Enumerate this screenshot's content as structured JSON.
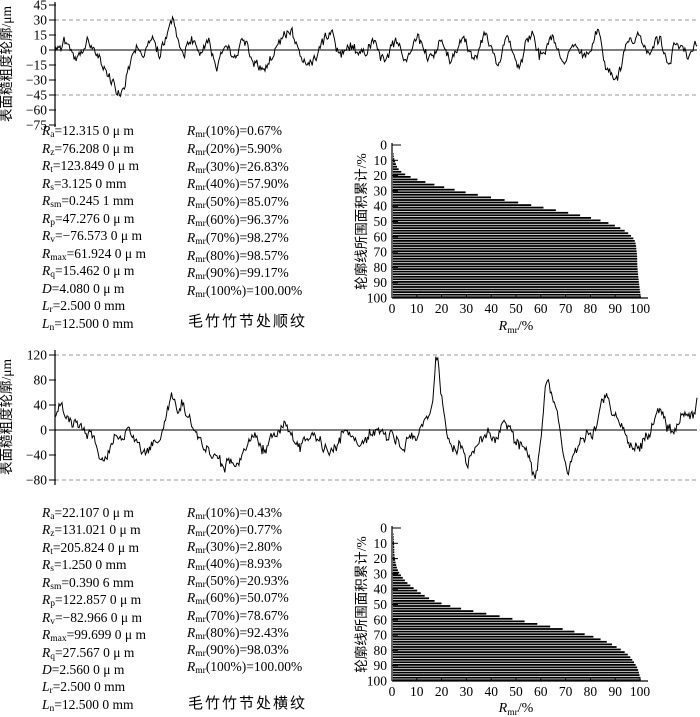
{
  "figure": {
    "panels": [
      {
        "caption": "毛竹竹节处顺纹",
        "profile_ylabel": "表面糙粗度轮廓/μm",
        "params": [
          {
            "base": "R",
            "sub": "a",
            "rest": "=12.315 0 μ m"
          },
          {
            "base": "R",
            "sub": "z",
            "rest": "=76.208 0 μ m"
          },
          {
            "base": "R",
            "sub": "t",
            "rest": "=123.849 0 μ m"
          },
          {
            "base": "R",
            "sub": "s",
            "rest": "=3.125 0 mm"
          },
          {
            "base": "R",
            "sub": "sm",
            "rest": "=0.245 1 mm"
          },
          {
            "base": "R",
            "sub": "p",
            "rest": "=47.276 0 μ m"
          },
          {
            "base": "R",
            "sub": "v",
            "rest": "=−76.573 0 μ m"
          },
          {
            "base": "R",
            "sub": "max",
            "rest": "=61.924 0 μ m"
          },
          {
            "base": "R",
            "sub": "q",
            "rest": "=15.462 0 μ m"
          },
          {
            "base": "D",
            "sub": "",
            "rest": "=4.080 0 μ m"
          },
          {
            "base": "L",
            "sub": "r",
            "rest": "=2.500 0 mm"
          },
          {
            "base": "L",
            "sub": "n",
            "rest": "=12.500 0 mm"
          }
        ],
        "rmr": [
          {
            "base": "R",
            "sub": "mr",
            "rest": "(10%)=0.67%"
          },
          {
            "base": "R",
            "sub": "mr",
            "rest": "(20%)=5.90%"
          },
          {
            "base": "R",
            "sub": "mr",
            "rest": "(30%)=26.83%"
          },
          {
            "base": "R",
            "sub": "mr",
            "rest": "(40%)=57.90%"
          },
          {
            "base": "R",
            "sub": "mr",
            "rest": "(50%)=85.07%"
          },
          {
            "base": "R",
            "sub": "mr",
            "rest": "(60%)=96.37%"
          },
          {
            "base": "R",
            "sub": "mr",
            "rest": "(70%)=98.27%"
          },
          {
            "base": "R",
            "sub": "mr",
            "rest": "(80%)=98.57%"
          },
          {
            "base": "R",
            "sub": "mr",
            "rest": "(90%)=99.17%"
          },
          {
            "base": "R",
            "sub": "mr",
            "rest": "(100%)=100.00%"
          }
        ],
        "abbott_ylabel": "轮廓线所围面积累计/%",
        "abbott_xlabel": {
          "base": "R",
          "sub": "mr",
          "rest": "/%"
        }
      },
      {
        "caption": "毛竹竹节处横纹",
        "profile_ylabel": "表面糙粗度轮廓/μm",
        "params": [
          {
            "base": "R",
            "sub": "a",
            "rest": "=22.107 0 μ m"
          },
          {
            "base": "R",
            "sub": "z",
            "rest": "=131.021 0 μ m"
          },
          {
            "base": "R",
            "sub": "t",
            "rest": "=205.824 0 μ m"
          },
          {
            "base": "R",
            "sub": "s",
            "rest": "=1.250 0 mm"
          },
          {
            "base": "R",
            "sub": "sm",
            "rest": "=0.390 6 mm"
          },
          {
            "base": "R",
            "sub": "p",
            "rest": "=122.857 0 μ m"
          },
          {
            "base": "R",
            "sub": "v",
            "rest": "=−82.966 0 μ m"
          },
          {
            "base": "R",
            "sub": "max",
            "rest": "=99.699 0 μ m"
          },
          {
            "base": "R",
            "sub": "q",
            "rest": "=27.567 0 μ m"
          },
          {
            "base": "D",
            "sub": "",
            "rest": "=2.560 0 μ m"
          },
          {
            "base": "L",
            "sub": "r",
            "rest": "=2.500 0 mm"
          },
          {
            "base": "L",
            "sub": "n",
            "rest": "=12.500 0 mm"
          }
        ],
        "rmr": [
          {
            "base": "R",
            "sub": "mr",
            "rest": "(10%)=0.43%"
          },
          {
            "base": "R",
            "sub": "mr",
            "rest": "(20%)=0.77%"
          },
          {
            "base": "R",
            "sub": "mr",
            "rest": "(30%)=2.80%"
          },
          {
            "base": "R",
            "sub": "mr",
            "rest": "(40%)=8.93%"
          },
          {
            "base": "R",
            "sub": "mr",
            "rest": "(50%)=20.93%"
          },
          {
            "base": "R",
            "sub": "mr",
            "rest": "(60%)=50.07%"
          },
          {
            "base": "R",
            "sub": "mr",
            "rest": "(70%)=78.67%"
          },
          {
            "base": "R",
            "sub": "mr",
            "rest": "(80%)=92.43%"
          },
          {
            "base": "R",
            "sub": "mr",
            "rest": "(90%)=98.03%"
          },
          {
            "base": "R",
            "sub": "mr",
            "rest": "(100%)=100.00%"
          }
        ],
        "abbott_ylabel": "轮廓线所围面积累计/%",
        "abbott_xlabel": {
          "base": "R",
          "sub": "mr",
          "rest": "/%"
        }
      }
    ]
  },
  "chart_data": [
    {
      "type": "line",
      "panel": "毛竹竹节处顺纹",
      "title": "surface roughness profile, along grain at bamboo node",
      "ylabel": "表面糙粗度轮廓/μm",
      "ylim": [
        -75,
        45
      ],
      "yticks": [
        45,
        30,
        15,
        0,
        -15,
        -30,
        -45,
        -60,
        -75
      ],
      "dashed_levels": [
        30,
        -45
      ],
      "zero_line": 0,
      "grid": "dashed reference lines only",
      "seed": 20240701,
      "noise_amp": 4,
      "jitter": 3,
      "clamp": [
        -47,
        33
      ],
      "key_points": [
        [
          0,
          3
        ],
        [
          0.02,
          9
        ],
        [
          0.035,
          -7
        ],
        [
          0.05,
          7
        ],
        [
          0.065,
          -9
        ],
        [
          0.08,
          -18
        ],
        [
          0.09,
          -30
        ],
        [
          0.098,
          -46
        ],
        [
          0.107,
          -36
        ],
        [
          0.115,
          -18
        ],
        [
          0.128,
          4
        ],
        [
          0.14,
          -6
        ],
        [
          0.152,
          9
        ],
        [
          0.163,
          -4
        ],
        [
          0.172,
          10
        ],
        [
          0.183,
          32
        ],
        [
          0.19,
          14
        ],
        [
          0.2,
          -3
        ],
        [
          0.212,
          11
        ],
        [
          0.225,
          -6
        ],
        [
          0.238,
          13
        ],
        [
          0.252,
          -12
        ],
        [
          0.266,
          9
        ],
        [
          0.28,
          -7
        ],
        [
          0.295,
          11
        ],
        [
          0.31,
          -14
        ],
        [
          0.325,
          -18
        ],
        [
          0.34,
          -9
        ],
        [
          0.355,
          13
        ],
        [
          0.37,
          17
        ],
        [
          0.385,
          -11
        ],
        [
          0.4,
          -14
        ],
        [
          0.415,
          7
        ],
        [
          0.43,
          13
        ],
        [
          0.445,
          -7
        ],
        [
          0.46,
          4
        ],
        [
          0.478,
          -4
        ],
        [
          0.495,
          7
        ],
        [
          0.512,
          -9
        ],
        [
          0.53,
          11
        ],
        [
          0.548,
          -7
        ],
        [
          0.565,
          9
        ],
        [
          0.582,
          -11
        ],
        [
          0.6,
          7
        ],
        [
          0.618,
          -5
        ],
        [
          0.635,
          11
        ],
        [
          0.652,
          -9
        ],
        [
          0.67,
          14
        ],
        [
          0.688,
          -11
        ],
        [
          0.705,
          15
        ],
        [
          0.722,
          -11
        ],
        [
          0.74,
          15
        ],
        [
          0.758,
          -7
        ],
        [
          0.775,
          11
        ],
        [
          0.792,
          -14
        ],
        [
          0.81,
          9
        ],
        [
          0.828,
          -7
        ],
        [
          0.845,
          13
        ],
        [
          0.862,
          -19
        ],
        [
          0.878,
          -24
        ],
        [
          0.893,
          7
        ],
        [
          0.91,
          17
        ],
        [
          0.925,
          -9
        ],
        [
          0.94,
          11
        ],
        [
          0.955,
          -11
        ],
        [
          0.97,
          9
        ],
        [
          0.985,
          -9
        ],
        [
          1,
          6
        ]
      ]
    },
    {
      "type": "bar",
      "orientation": "horizontal",
      "panel": "毛竹竹节处顺纹",
      "title": "bearing-area (Abbott) curve",
      "ylabel": "轮廓线所围面积累计/%",
      "xlabel": "Rmr/%",
      "xlim": [
        0,
        100
      ],
      "ylim": [
        0,
        100
      ],
      "xticks": [
        0,
        10,
        20,
        30,
        40,
        50,
        60,
        70,
        80,
        90,
        100
      ],
      "yticks": [
        0,
        10,
        20,
        30,
        40,
        50,
        60,
        70,
        80,
        90,
        100
      ],
      "legend": "none",
      "depth_percent": [
        0,
        10,
        20,
        30,
        40,
        50,
        60,
        70,
        80,
        90,
        100
      ],
      "rmr_percent": [
        0,
        0.67,
        5.9,
        26.83,
        57.9,
        85.07,
        96.37,
        98.27,
        98.57,
        99.17,
        100
      ]
    },
    {
      "type": "line",
      "panel": "毛竹竹节处横纹",
      "title": "surface roughness profile, cross grain at bamboo node",
      "ylabel": "表面糙粗度轮廓/μm",
      "ylim": [
        -80,
        120
      ],
      "yticks": [
        120,
        80,
        40,
        0,
        -40,
        -80
      ],
      "dashed_levels": [
        120,
        -80
      ],
      "zero_line": 0,
      "grid": "dashed reference lines only",
      "seed": 987654,
      "noise_amp": 7,
      "jitter": 5,
      "clamp": [
        -78,
        119
      ],
      "key_points": [
        [
          0,
          28
        ],
        [
          0.008,
          44
        ],
        [
          0.02,
          26
        ],
        [
          0.035,
          12
        ],
        [
          0.05,
          2
        ],
        [
          0.06,
          -8
        ],
        [
          0.068,
          -35
        ],
        [
          0.076,
          -55
        ],
        [
          0.085,
          -30
        ],
        [
          0.095,
          -5
        ],
        [
          0.105,
          -18
        ],
        [
          0.115,
          -5
        ],
        [
          0.13,
          -20
        ],
        [
          0.145,
          -38
        ],
        [
          0.155,
          -25
        ],
        [
          0.165,
          -10
        ],
        [
          0.175,
          30
        ],
        [
          0.183,
          44
        ],
        [
          0.192,
          25
        ],
        [
          0.2,
          35
        ],
        [
          0.21,
          10
        ],
        [
          0.222,
          -18
        ],
        [
          0.235,
          -30
        ],
        [
          0.25,
          -45
        ],
        [
          0.262,
          -58
        ],
        [
          0.272,
          -40
        ],
        [
          0.285,
          -48
        ],
        [
          0.297,
          -30
        ],
        [
          0.31,
          -12
        ],
        [
          0.325,
          -30
        ],
        [
          0.34,
          -16
        ],
        [
          0.355,
          5
        ],
        [
          0.368,
          -8
        ],
        [
          0.38,
          -28
        ],
        [
          0.392,
          -18
        ],
        [
          0.403,
          -5
        ],
        [
          0.415,
          -22
        ],
        [
          0.428,
          -32
        ],
        [
          0.44,
          -20
        ],
        [
          0.452,
          0
        ],
        [
          0.465,
          -12
        ],
        [
          0.478,
          -25
        ],
        [
          0.49,
          -12
        ],
        [
          0.502,
          -2
        ],
        [
          0.515,
          -18
        ],
        [
          0.528,
          -8
        ],
        [
          0.54,
          -30
        ],
        [
          0.552,
          -15
        ],
        [
          0.565,
          -5
        ],
        [
          0.578,
          15
        ],
        [
          0.588,
          42
        ],
        [
          0.594,
          118
        ],
        [
          0.602,
          55
        ],
        [
          0.612,
          -15
        ],
        [
          0.622,
          -32
        ],
        [
          0.632,
          -22
        ],
        [
          0.642,
          -48
        ],
        [
          0.652,
          -28
        ],
        [
          0.662,
          -8
        ],
        [
          0.675,
          -2
        ],
        [
          0.688,
          -14
        ],
        [
          0.7,
          18
        ],
        [
          0.712,
          -8
        ],
        [
          0.725,
          -25
        ],
        [
          0.738,
          -40
        ],
        [
          0.748,
          -76
        ],
        [
          0.756,
          -25
        ],
        [
          0.766,
          82
        ],
        [
          0.776,
          50
        ],
        [
          0.786,
          12
        ],
        [
          0.798,
          -55
        ],
        [
          0.808,
          -38
        ],
        [
          0.82,
          -18
        ],
        [
          0.832,
          -8
        ],
        [
          0.844,
          14
        ],
        [
          0.856,
          52
        ],
        [
          0.868,
          38
        ],
        [
          0.878,
          8
        ],
        [
          0.89,
          -14
        ],
        [
          0.9,
          -32
        ],
        [
          0.912,
          -18
        ],
        [
          0.922,
          -8
        ],
        [
          0.932,
          14
        ],
        [
          0.942,
          28
        ],
        [
          0.952,
          4
        ],
        [
          0.962,
          -8
        ],
        [
          0.972,
          8
        ],
        [
          0.98,
          22
        ],
        [
          0.99,
          18
        ],
        [
          1,
          44
        ]
      ]
    },
    {
      "type": "bar",
      "orientation": "horizontal",
      "panel": "毛竹竹节处横纹",
      "title": "bearing-area (Abbott) curve",
      "ylabel": "轮廓线所围面积累计/%",
      "xlabel": "Rmr/%",
      "xlim": [
        0,
        100
      ],
      "ylim": [
        0,
        100
      ],
      "xticks": [
        0,
        10,
        20,
        30,
        40,
        50,
        60,
        70,
        80,
        90,
        100
      ],
      "yticks": [
        0,
        10,
        20,
        30,
        40,
        50,
        60,
        70,
        80,
        90,
        100
      ],
      "legend": "none",
      "depth_percent": [
        0,
        10,
        20,
        30,
        40,
        50,
        60,
        70,
        80,
        90,
        100
      ],
      "rmr_percent": [
        0,
        0.43,
        0.77,
        2.8,
        8.93,
        20.93,
        50.07,
        78.67,
        92.43,
        98.03,
        100
      ]
    }
  ]
}
